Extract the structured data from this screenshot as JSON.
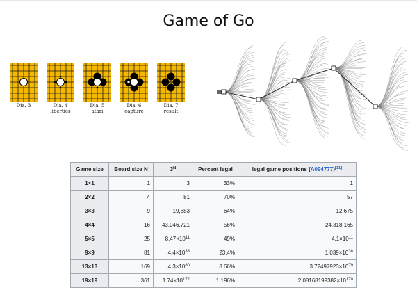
{
  "slide_title": "Game of Go",
  "colors": {
    "board": "#f5b800",
    "grid": "#1a1a1a",
    "link": "#3366cc",
    "table_header_bg": "#eaecf0",
    "table_cell_bg": "#f8f9fa"
  },
  "diagrams": [
    {
      "caption_line1": "Dia. 3",
      "caption_line2": ""
    },
    {
      "caption_line1": "Dia. 4",
      "caption_line2": "liberties"
    },
    {
      "caption_line1": "Dia. 5",
      "caption_line2": "atari"
    },
    {
      "caption_line1": "Dia. 6",
      "caption_line2": "capture"
    },
    {
      "caption_line1": "Dia. 7",
      "caption_line2": "result"
    }
  ],
  "tree_image": "game-tree-illustration",
  "table": {
    "headers": {
      "game_size": "Game size",
      "board_size": "Board size N",
      "three_base": "3",
      "three_exp": "N",
      "percent": "Percent legal",
      "legal_prefix": "legal game positions (",
      "legal_link": "A094777",
      "legal_suffix": ")",
      "legal_ref": "[11]"
    },
    "rows": [
      {
        "size": "1×1",
        "n": "1",
        "p_base": "3",
        "p_exp": "",
        "pct": "33%",
        "l_base": "1",
        "l_exp": ""
      },
      {
        "size": "2×2",
        "n": "4",
        "p_base": "81",
        "p_exp": "",
        "pct": "70%",
        "l_base": "57",
        "l_exp": ""
      },
      {
        "size": "3×3",
        "n": "9",
        "p_base": "19,683",
        "p_exp": "",
        "pct": "64%",
        "l_base": "12,675",
        "l_exp": ""
      },
      {
        "size": "4×4",
        "n": "16",
        "p_base": "43,046,721",
        "p_exp": "",
        "pct": "56%",
        "l_base": "24,318,165",
        "l_exp": ""
      },
      {
        "size": "5×5",
        "n": "25",
        "p_base": "8.47×10",
        "p_exp": "11",
        "pct": "49%",
        "l_base": "4.1×10",
        "l_exp": "11"
      },
      {
        "size": "9×9",
        "n": "81",
        "p_base": "4.4×10",
        "p_exp": "38",
        "pct": "23.4%",
        "l_base": "1.039×10",
        "l_exp": "38"
      },
      {
        "size": "13×13",
        "n": "169",
        "p_base": "4.3×10",
        "p_exp": "80",
        "pct": "8.66%",
        "l_base": "3.72497923×10",
        "l_exp": "79"
      },
      {
        "size": "19×19",
        "n": "361",
        "p_base": "1.74×10",
        "p_exp": "172",
        "pct": "1.196%",
        "l_base": "2.08168199382×10",
        "l_exp": "170"
      }
    ]
  }
}
